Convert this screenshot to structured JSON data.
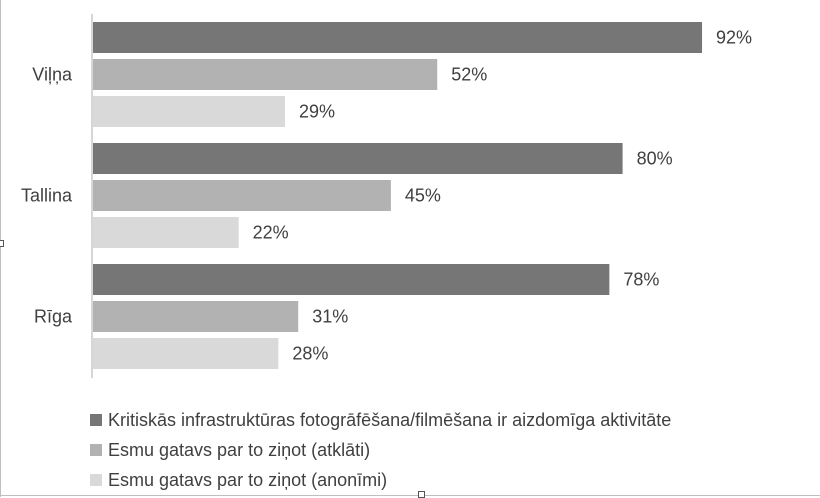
{
  "chart_data": {
    "type": "bar",
    "orientation": "horizontal",
    "categories": [
      "Viļņa",
      "Tallina",
      "Rīga"
    ],
    "series": [
      {
        "name": "Kritiskās infrastruktūras fotogrāfēšana/filmēšana ir aizdomīga aktivitāte",
        "values": [
          92,
          80,
          78
        ],
        "labels": [
          "92%",
          "80%",
          "78%"
        ],
        "color": "#767676"
      },
      {
        "name": "Esmu gatavs par to ziņot (atklāti)",
        "values": [
          52,
          45,
          31
        ],
        "labels": [
          "52%",
          "45%",
          "31%"
        ],
        "color": "#b2b2b2"
      },
      {
        "name": "Esmu gatavs par to ziņot (anonīmi)",
        "values": [
          29,
          22,
          28
        ],
        "labels": [
          "29%",
          "22%",
          "28%"
        ],
        "color": "#d9d9d9"
      }
    ],
    "xlim": [
      0,
      100
    ],
    "value_unit": "%",
    "grid": false,
    "legend_position": "bottom",
    "colors": {
      "axis": "#bfbfbf",
      "text": "#404040"
    }
  }
}
